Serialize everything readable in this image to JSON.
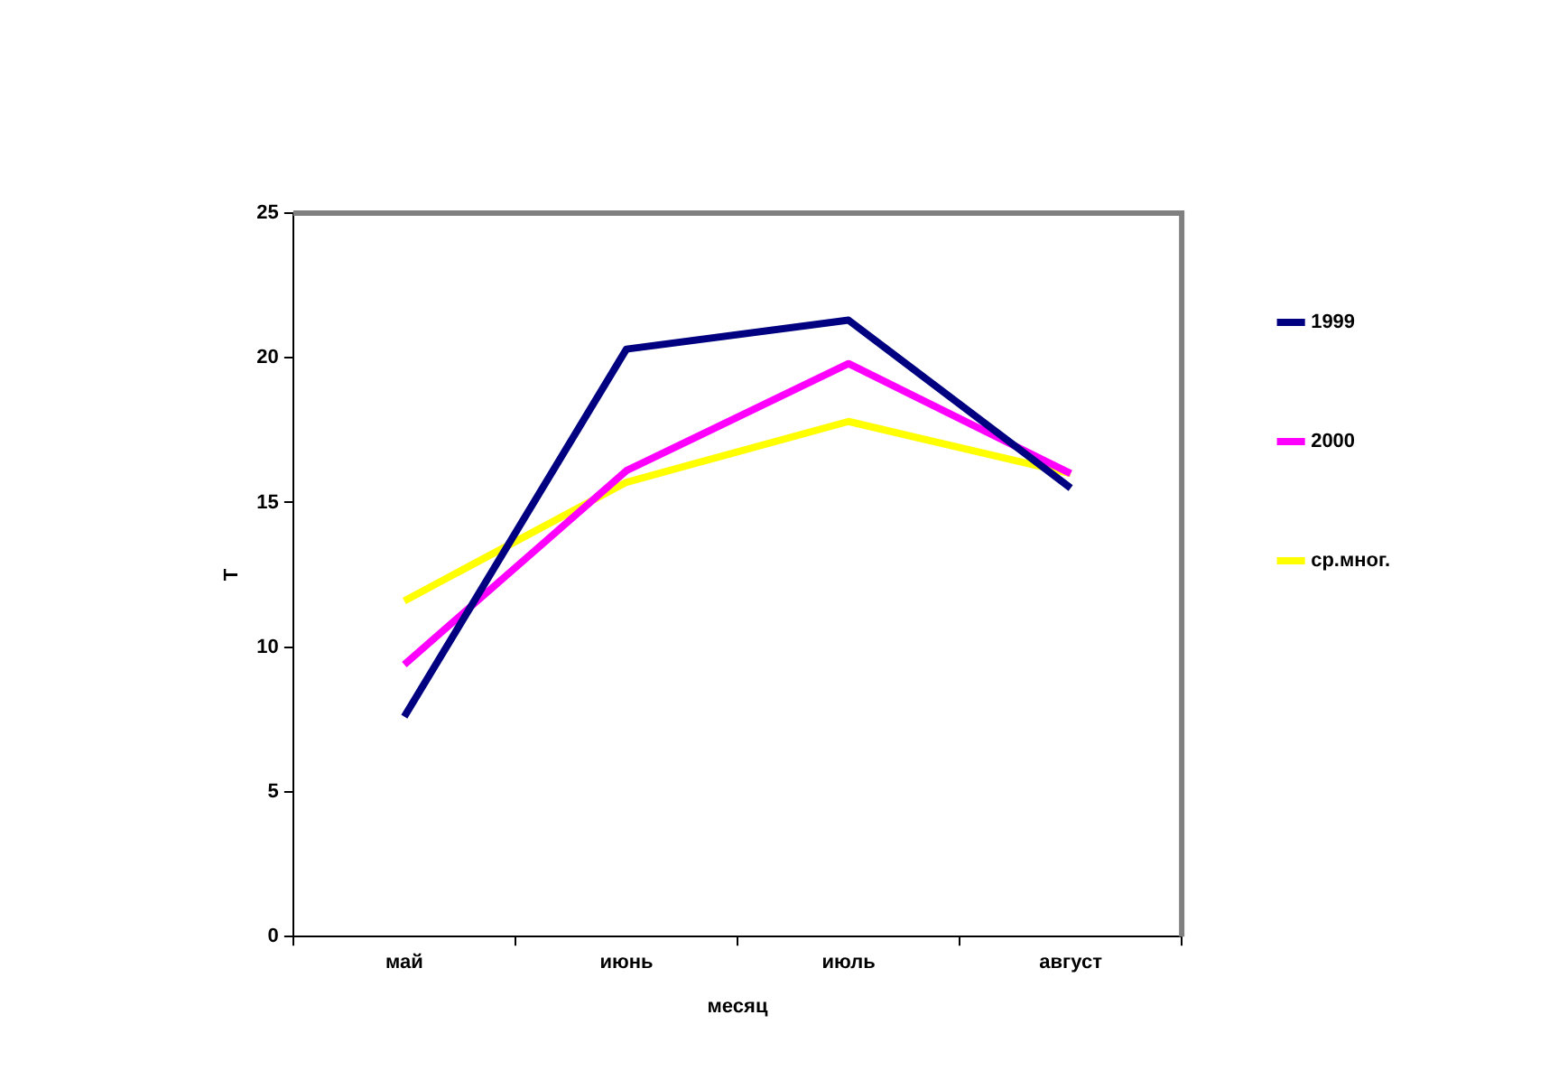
{
  "chart_data": {
    "type": "line",
    "xlabel": "месяц",
    "ylabel": "T",
    "categories": [
      "май",
      "июнь",
      "июль",
      "август"
    ],
    "series": [
      {
        "name": "1999",
        "color": "#000080",
        "values": [
          7.6,
          20.3,
          21.3,
          15.5
        ]
      },
      {
        "name": "2000",
        "color": "#ff00ff",
        "values": [
          9.4,
          16.1,
          19.8,
          16.0
        ]
      },
      {
        "name": "ср.мног.",
        "color": "#ffff00",
        "values": [
          11.6,
          15.7,
          17.8,
          16.0
        ]
      }
    ],
    "ylim": [
      0,
      25
    ],
    "yticks": [
      0,
      5,
      10,
      15,
      20,
      25
    ],
    "grid": false,
    "legend": "right",
    "marker": "none",
    "line_style": "solid"
  }
}
